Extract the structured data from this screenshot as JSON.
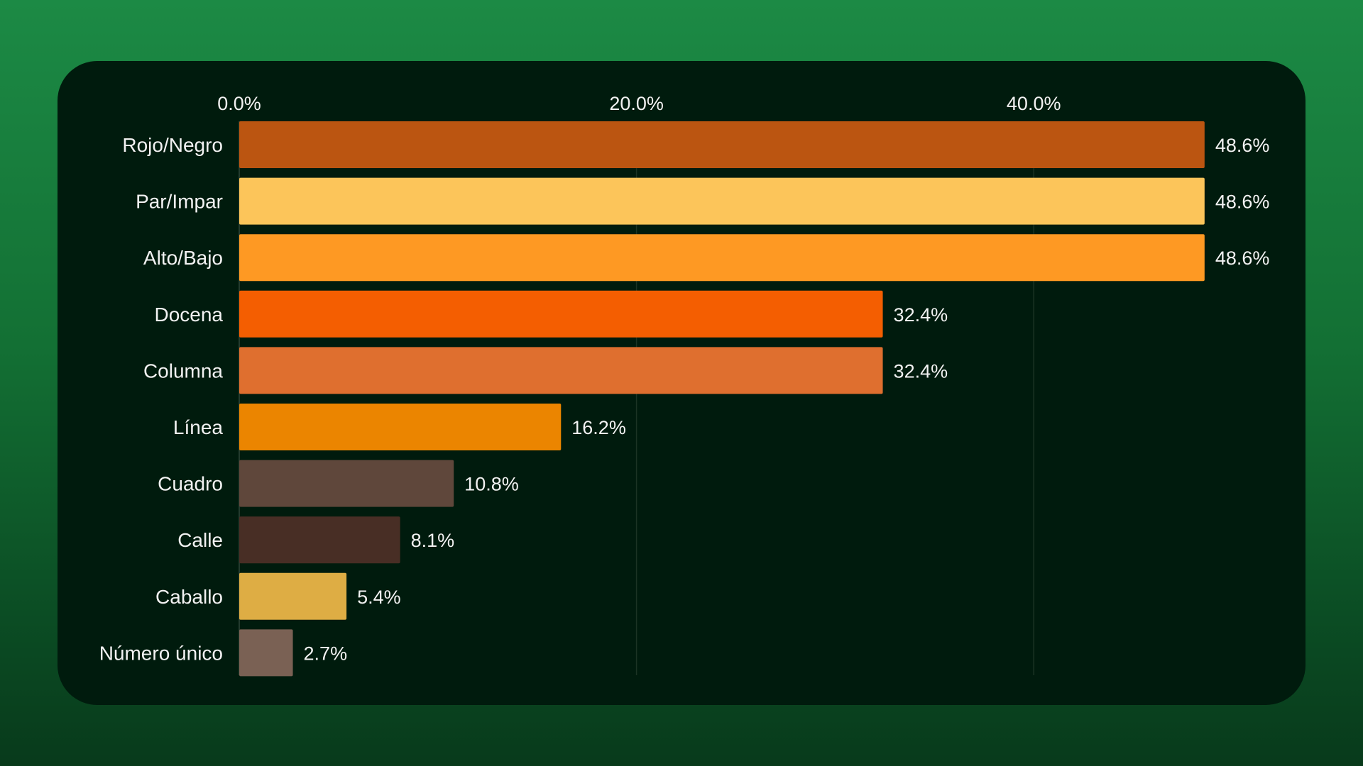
{
  "chart_data": {
    "type": "bar",
    "orientation": "horizontal",
    "categories": [
      "Rojo/Negro",
      "Par/Impar",
      "Alto/Bajo",
      "Docena",
      "Columna",
      "Línea",
      "Cuadro",
      "Calle",
      "Caballo",
      "Número único"
    ],
    "values": [
      48.6,
      48.6,
      48.6,
      32.4,
      32.4,
      16.2,
      10.8,
      8.1,
      5.4,
      2.7
    ],
    "value_labels": [
      "48.6%",
      "48.6%",
      "48.6%",
      "32.4%",
      "32.4%",
      "16.2%",
      "10.8%",
      "8.1%",
      "5.4%",
      "2.7%"
    ],
    "colors": [
      "#bb5511",
      "#fcc55a",
      "#fe9923",
      "#f45e01",
      "#df6f2f",
      "#eb8500",
      "#5f473b",
      "#482e25",
      "#dead44",
      "#7a6154"
    ],
    "xticks": [
      0,
      20,
      40
    ],
    "xtick_labels": [
      "0.0%",
      "20.0%",
      "40.0%"
    ],
    "xlim": [
      0,
      52.5
    ],
    "x_axis_position": "top",
    "grid": true,
    "title": "",
    "xlabel": "",
    "ylabel": ""
  }
}
